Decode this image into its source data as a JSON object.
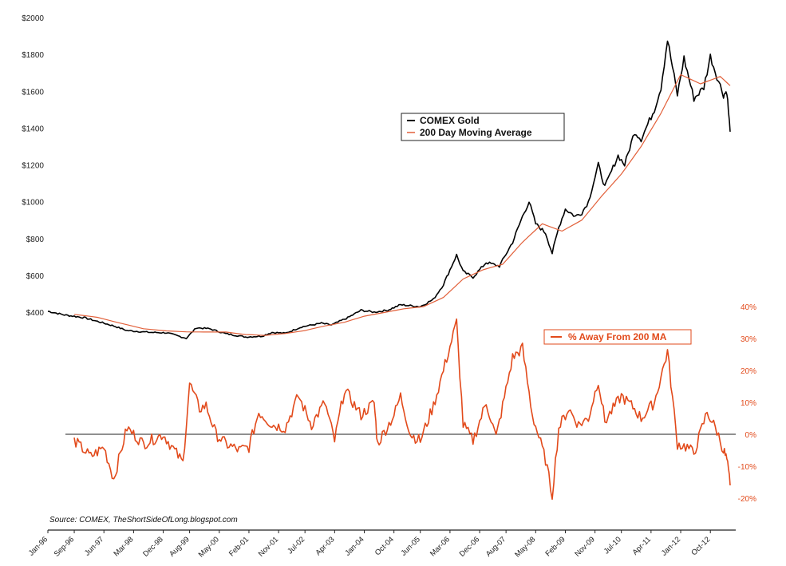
{
  "chart_data": {
    "type": "line",
    "x_range": [
      "1996-01",
      "2013-04"
    ],
    "left_axis": {
      "ylim": [
        200,
        2000
      ],
      "ticks": [
        {
          "value": 400,
          "label": "$400"
        },
        {
          "value": 600,
          "label": "$600"
        },
        {
          "value": 800,
          "label": "$800"
        },
        {
          "value": 1000,
          "label": "$1000"
        },
        {
          "value": 1200,
          "label": "$1200"
        },
        {
          "value": 1400,
          "label": "$1400"
        },
        {
          "value": 1600,
          "label": "$1600"
        },
        {
          "value": 1800,
          "label": "$1800"
        },
        {
          "value": 2000,
          "label": "$2000"
        }
      ]
    },
    "right_axis": {
      "ylim": [
        -20,
        40
      ],
      "ticks": [
        {
          "value": 40,
          "label": "40%"
        },
        {
          "value": 30,
          "label": "30%"
        },
        {
          "value": 20,
          "label": "20%"
        },
        {
          "value": 10,
          "label": "10%"
        },
        {
          "value": 0,
          "label": "0%"
        },
        {
          "value": -10,
          "label": "-10%"
        },
        {
          "value": -20,
          "label": "-20%"
        }
      ]
    },
    "x_ticks": [
      {
        "t": "1996-01",
        "label": "Jan-96"
      },
      {
        "t": "1996-09",
        "label": "Sep-96"
      },
      {
        "t": "1997-06",
        "label": "Jun-97"
      },
      {
        "t": "1998-03",
        "label": "Mar-98"
      },
      {
        "t": "1998-12",
        "label": "Dec-98"
      },
      {
        "t": "1999-08",
        "label": "Aug-99"
      },
      {
        "t": "2000-05",
        "label": "May-00"
      },
      {
        "t": "2001-02",
        "label": "Feb-01"
      },
      {
        "t": "2001-11",
        "label": "Nov-01"
      },
      {
        "t": "2002-07",
        "label": "Jul-02"
      },
      {
        "t": "2003-04",
        "label": "Apr-03"
      },
      {
        "t": "2004-01",
        "label": "Jan-04"
      },
      {
        "t": "2004-10",
        "label": "Oct-04"
      },
      {
        "t": "2005-06",
        "label": "Jun-05"
      },
      {
        "t": "2006-03",
        "label": "Mar-06"
      },
      {
        "t": "2006-12",
        "label": "Dec-06"
      },
      {
        "t": "2007-08",
        "label": "Aug-07"
      },
      {
        "t": "2008-05",
        "label": "May-08"
      },
      {
        "t": "2009-02",
        "label": "Feb-09"
      },
      {
        "t": "2009-11",
        "label": "Nov-09"
      },
      {
        "t": "2010-07",
        "label": "Jul-10"
      },
      {
        "t": "2011-04",
        "label": "Apr-11"
      },
      {
        "t": "2012-01",
        "label": "Jan-12"
      },
      {
        "t": "2012-10",
        "label": "Oct-12"
      }
    ],
    "series": [
      {
        "name": "COMEX Gold",
        "axis": "left",
        "color": "#000000",
        "points": [
          [
            "1996-01",
            405
          ],
          [
            "1996-06",
            385
          ],
          [
            "1996-12",
            370
          ],
          [
            "1997-06",
            340
          ],
          [
            "1997-09",
            325
          ],
          [
            "1998-01",
            300
          ],
          [
            "1998-08",
            290
          ],
          [
            "1999-01",
            288
          ],
          [
            "1999-07",
            258
          ],
          [
            "1999-10",
            315
          ],
          [
            "2000-02",
            310
          ],
          [
            "2000-07",
            283
          ],
          [
            "2001-01",
            265
          ],
          [
            "2001-06",
            270
          ],
          [
            "2001-09",
            290
          ],
          [
            "2002-01",
            285
          ],
          [
            "2002-06",
            320
          ],
          [
            "2002-12",
            340
          ],
          [
            "2003-03",
            330
          ],
          [
            "2003-08",
            370
          ],
          [
            "2003-12",
            410
          ],
          [
            "2004-04",
            400
          ],
          [
            "2004-08",
            410
          ],
          [
            "2004-12",
            440
          ],
          [
            "2005-06",
            430
          ],
          [
            "2005-10",
            470
          ],
          [
            "2006-01",
            550
          ],
          [
            "2006-05",
            710
          ],
          [
            "2006-07",
            620
          ],
          [
            "2006-10",
            590
          ],
          [
            "2007-02",
            670
          ],
          [
            "2007-06",
            650
          ],
          [
            "2007-10",
            780
          ],
          [
            "2008-01",
            920
          ],
          [
            "2008-03",
            1000
          ],
          [
            "2008-05",
            880
          ],
          [
            "2008-08",
            830
          ],
          [
            "2008-10",
            720
          ],
          [
            "2008-12",
            860
          ],
          [
            "2009-02",
            960
          ],
          [
            "2009-05",
            920
          ],
          [
            "2009-07",
            940
          ],
          [
            "2009-09",
            1000
          ],
          [
            "2009-12",
            1200
          ],
          [
            "2010-02",
            1080
          ],
          [
            "2010-06",
            1250
          ],
          [
            "2010-08",
            1200
          ],
          [
            "2010-11",
            1380
          ],
          [
            "2011-01",
            1340
          ],
          [
            "2011-05",
            1500
          ],
          [
            "2011-07",
            1620
          ],
          [
            "2011-09",
            1880
          ],
          [
            "2011-12",
            1580
          ],
          [
            "2012-02",
            1780
          ],
          [
            "2012-05",
            1560
          ],
          [
            "2012-08",
            1620
          ],
          [
            "2012-10",
            1790
          ],
          [
            "2012-12",
            1680
          ],
          [
            "2013-02",
            1580
          ],
          [
            "2013-03",
            1600
          ],
          [
            "2013-04",
            1380
          ]
        ]
      },
      {
        "name": "200 Day Moving Average",
        "axis": "left",
        "color": "#e2603a",
        "points": [
          [
            "1996-09",
            388
          ],
          [
            "1997-04",
            372
          ],
          [
            "1997-11",
            340
          ],
          [
            "1998-06",
            310
          ],
          [
            "1999-01",
            298
          ],
          [
            "1999-07",
            293
          ],
          [
            "2000-01",
            292
          ],
          [
            "2000-07",
            292
          ],
          [
            "2001-01",
            278
          ],
          [
            "2001-07",
            274
          ],
          [
            "2002-01",
            284
          ],
          [
            "2002-07",
            300
          ],
          [
            "2003-01",
            325
          ],
          [
            "2003-07",
            345
          ],
          [
            "2004-01",
            378
          ],
          [
            "2004-07",
            398
          ],
          [
            "2005-01",
            418
          ],
          [
            "2005-07",
            430
          ],
          [
            "2006-01",
            480
          ],
          [
            "2006-07",
            580
          ],
          [
            "2007-01",
            630
          ],
          [
            "2007-07",
            660
          ],
          [
            "2008-01",
            780
          ],
          [
            "2008-07",
            880
          ],
          [
            "2009-01",
            840
          ],
          [
            "2009-07",
            900
          ],
          [
            "2010-01",
            1030
          ],
          [
            "2010-07",
            1150
          ],
          [
            "2011-01",
            1300
          ],
          [
            "2011-07",
            1480
          ],
          [
            "2012-01",
            1690
          ],
          [
            "2012-07",
            1640
          ],
          [
            "2013-01",
            1680
          ],
          [
            "2013-04",
            1630
          ]
        ]
      },
      {
        "name": "% Away From 200 MA",
        "axis": "right",
        "color": "#e24a1b",
        "points": [
          [
            "1996-09",
            -2
          ],
          [
            "1997-02",
            -7
          ],
          [
            "1997-06",
            -4
          ],
          [
            "1997-09",
            -14
          ],
          [
            "1998-01",
            2
          ],
          [
            "1998-06",
            -3
          ],
          [
            "1998-12",
            0
          ],
          [
            "1999-06",
            -9
          ],
          [
            "1999-08",
            16
          ],
          [
            "1999-11",
            8
          ],
          [
            "2000-01",
            9
          ],
          [
            "2000-04",
            0
          ],
          [
            "2000-07",
            -3
          ],
          [
            "2000-11",
            -5
          ],
          [
            "2001-02",
            -4
          ],
          [
            "2001-05",
            7
          ],
          [
            "2001-09",
            3
          ],
          [
            "2002-01",
            2
          ],
          [
            "2002-05",
            12
          ],
          [
            "2002-09",
            3
          ],
          [
            "2003-01",
            10
          ],
          [
            "2003-04",
            -2
          ],
          [
            "2003-07",
            14
          ],
          [
            "2003-12",
            6
          ],
          [
            "2004-04",
            10
          ],
          [
            "2004-05",
            -3
          ],
          [
            "2004-10",
            6
          ],
          [
            "2004-12",
            12
          ],
          [
            "2005-03",
            0
          ],
          [
            "2005-06",
            -2
          ],
          [
            "2005-10",
            9
          ],
          [
            "2006-01",
            20
          ],
          [
            "2006-05",
            35
          ],
          [
            "2006-07",
            3
          ],
          [
            "2006-10",
            -2
          ],
          [
            "2007-02",
            10
          ],
          [
            "2007-05",
            -1
          ],
          [
            "2007-10",
            24
          ],
          [
            "2008-01",
            27
          ],
          [
            "2008-04",
            6
          ],
          [
            "2008-08",
            -8
          ],
          [
            "2008-10",
            -19
          ],
          [
            "2008-12",
            2
          ],
          [
            "2009-03",
            8
          ],
          [
            "2009-06",
            3
          ],
          [
            "2009-09",
            5
          ],
          [
            "2009-12",
            17
          ],
          [
            "2010-02",
            4
          ],
          [
            "2010-07",
            12
          ],
          [
            "2010-11",
            8
          ],
          [
            "2011-01",
            5
          ],
          [
            "2011-05",
            10
          ],
          [
            "2011-09",
            26
          ],
          [
            "2011-12",
            -3
          ],
          [
            "2012-03",
            -4
          ],
          [
            "2012-05",
            -6
          ],
          [
            "2012-09",
            7
          ],
          [
            "2012-12",
            1
          ],
          [
            "2013-02",
            -5
          ],
          [
            "2013-03",
            -8
          ],
          [
            "2013-04",
            -16
          ]
        ]
      }
    ],
    "legend_top": {
      "placement": "upper center",
      "entries": [
        "COMEX Gold",
        "200 Day Moving Average"
      ]
    },
    "legend_bottom": {
      "placement": "center-right",
      "entries": [
        "% Away From 200 MA"
      ]
    },
    "annotation": "Source: COMEX, TheShortSideOfLong.blogspot.com",
    "title": "",
    "xlabel": "",
    "ylabel": "",
    "grid": false,
    "zero_line": true
  }
}
